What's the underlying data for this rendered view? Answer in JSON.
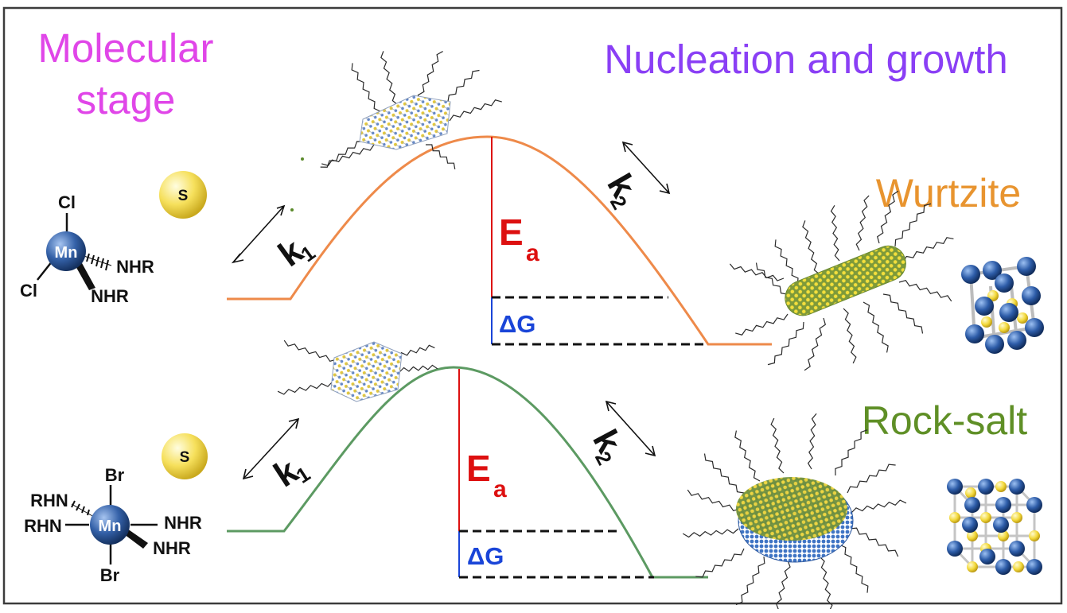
{
  "headings": {
    "molecular_line1": "Molecular",
    "molecular_line2": "stage",
    "nucleation": "Nucleation and growth",
    "wurtzite": "Wurtzite",
    "rocksalt": "Rock-salt"
  },
  "precursor_top": {
    "metal": "Mn",
    "ligand_top": "Cl",
    "ligand_left": "Cl",
    "ligand_right": "NHR",
    "ligand_bottom": "NHR",
    "sulfur": "S"
  },
  "precursor_bottom": {
    "metal": "Mn",
    "ligand_top": "Br",
    "ligand_bottom": "Br",
    "ligand_left_upper": "RHN",
    "ligand_left": "RHN",
    "ligand_right": "NHR",
    "ligand_right_lower": "NHR",
    "sulfur": "S"
  },
  "energy_labels": {
    "k1_letter": "k",
    "k1_sub": "1",
    "k2_letter": "k",
    "k2_sub": "2",
    "ea_letter": "E",
    "ea_sub": "a",
    "delta_g": "ΔG"
  },
  "colors": {
    "molecular": "#e046e8",
    "nucleation": "#8a3ff5",
    "wurtzite": "#e8942f",
    "rocksalt": "#5f8f26",
    "wurtzite_curve": "#ee8a4a",
    "rocksalt_curve": "#5c9a62",
    "activation": "#dd1010",
    "delta_g": "#1a45d8",
    "mn_atom": "#3461a8",
    "s_atom": "#f4dc4a"
  }
}
